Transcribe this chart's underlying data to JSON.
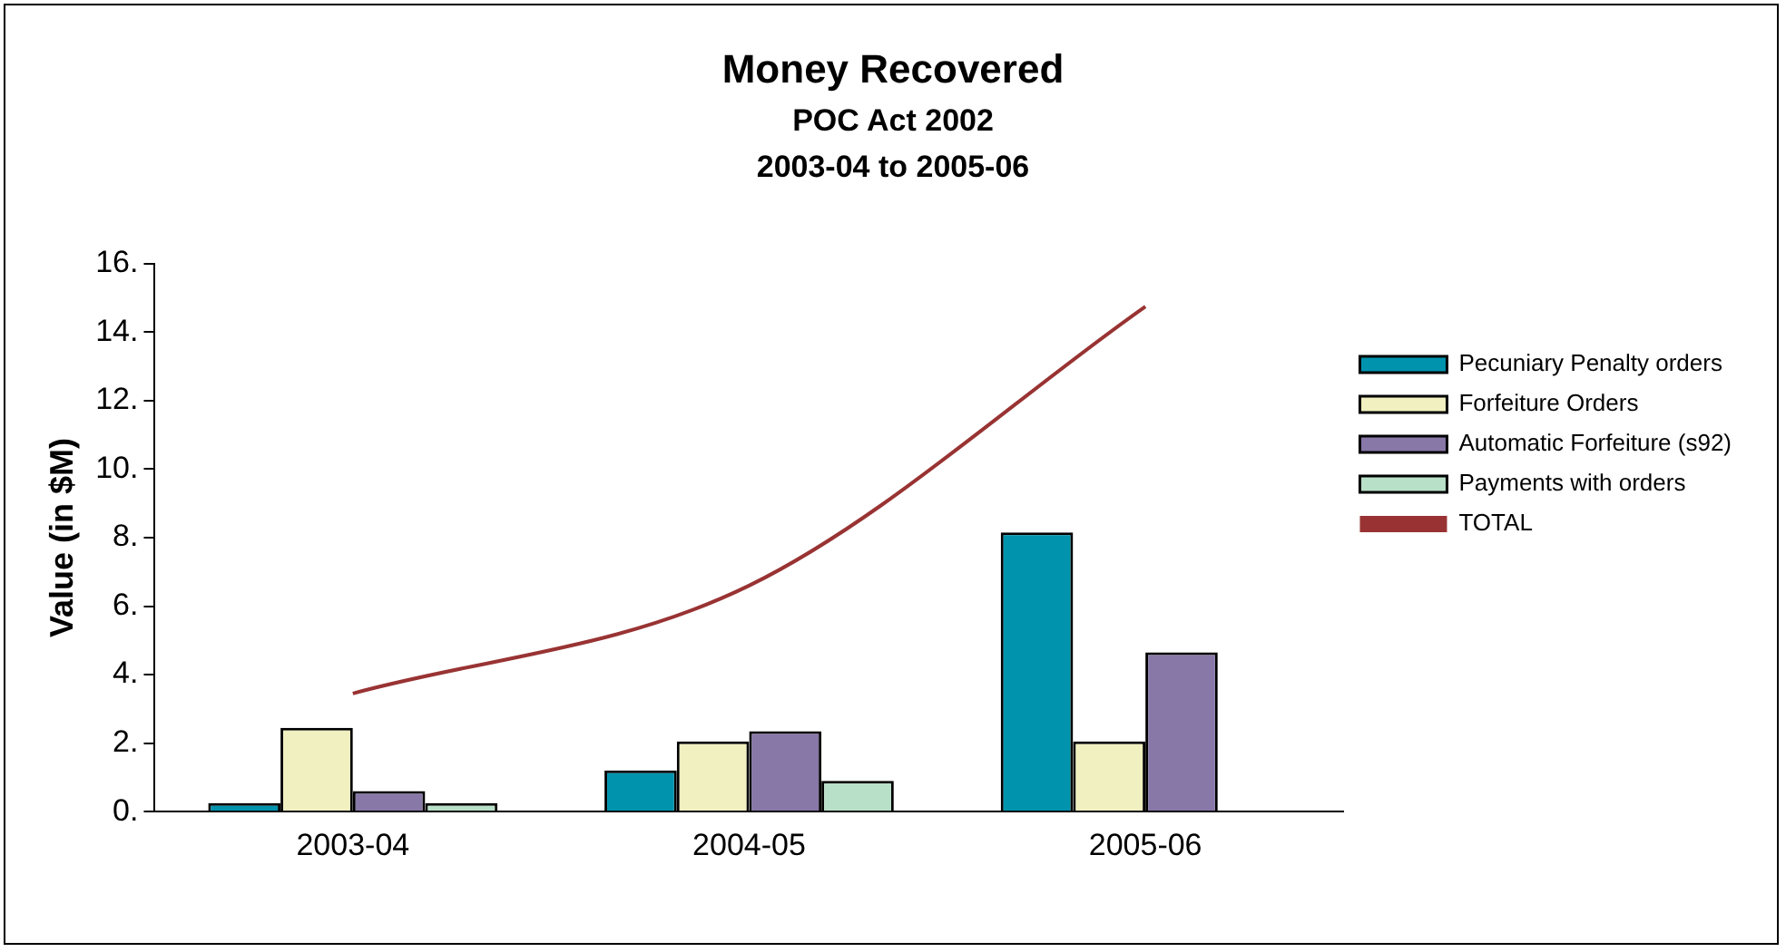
{
  "chart_data": {
    "type": "bar",
    "title": "Money Recovered",
    "subtitle": "POC Act 2002\n2003-04 to 2005-06",
    "ylabel": "Value (in $M)",
    "categories": [
      "2003-04",
      "2004-05",
      "2005-06"
    ],
    "series": [
      {
        "name": "Pecuniary Penalty orders",
        "color": "#0093ae",
        "values": [
          0.25,
          1.2,
          8.15
        ]
      },
      {
        "name": "Forfeiture Orders",
        "color": "#f0f0c0",
        "values": [
          2.45,
          2.05,
          2.05
        ]
      },
      {
        "name": "Automatic Forfeiture (s92)",
        "color": "#8878a8",
        "values": [
          0.6,
          2.35,
          4.65
        ]
      },
      {
        "name": "Payments with orders",
        "color": "#b8e0c8",
        "values": [
          0.25,
          0.9,
          null
        ]
      },
      {
        "name": "TOTAL",
        "type": "line",
        "color": "#993333",
        "values": [
          3.45,
          6.6,
          14.75
        ]
      }
    ],
    "ylim": [
      0,
      16
    ],
    "yticks": [
      {
        "value": 0,
        "label": "0."
      },
      {
        "value": 2,
        "label": "2."
      },
      {
        "value": 4,
        "label": "4."
      },
      {
        "value": 6,
        "label": "6."
      },
      {
        "value": 8,
        "label": "8."
      },
      {
        "value": 10,
        "label": "10."
      },
      {
        "value": 12,
        "label": "12."
      },
      {
        "value": 14,
        "label": "14."
      },
      {
        "value": 16,
        "label": "16."
      }
    ],
    "grid": false,
    "legend": "right",
    "marker": "none"
  }
}
